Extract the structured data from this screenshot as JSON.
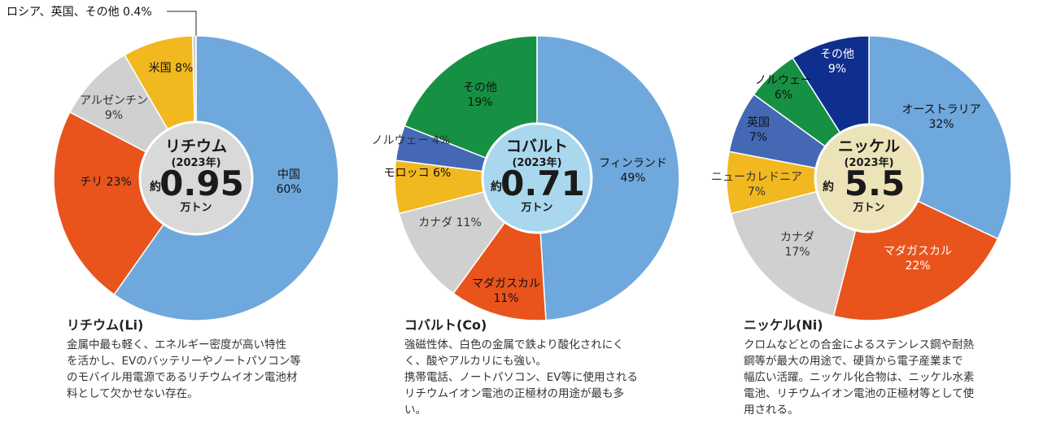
{
  "colors": {
    "blue": "#6fa8dc",
    "orange": "#e8541c",
    "gray": "#d0d0d0",
    "yellow": "#f1b820",
    "green": "#169143",
    "royal": "#4468b4",
    "navy": "#0f2f8e",
    "center_li": "#d9d9d9",
    "center_co": "#a9d8ee",
    "center_ni": "#ece4b8"
  },
  "chart_data": [
    {
      "type": "pie",
      "center": {
        "title": "リチウム",
        "year": "(2023年)",
        "prefix": "約",
        "value": "0.95",
        "unit": "万トン"
      },
      "slices": [
        {
          "name": "中国",
          "value": 60,
          "label": "60%",
          "color": "blue",
          "text_color": "#111"
        },
        {
          "name": "チリ",
          "value": 23,
          "label": "23%",
          "color": "orange",
          "text_color": "#111"
        },
        {
          "name": "アルゼンチン",
          "value": 9,
          "label": "9%",
          "color": "gray",
          "text_color": "#333"
        },
        {
          "name": "米国",
          "value": 8,
          "label": "8%",
          "color": "yellow",
          "text_color": "#111"
        },
        {
          "name": "ロシア、英国、その他",
          "value": 0.4,
          "label": "0.4%",
          "color": "gray",
          "text_color": "#111"
        }
      ]
    },
    {
      "type": "pie",
      "center": {
        "title": "コバルト",
        "year": "(2023年)",
        "prefix": "約",
        "value": "0.71",
        "unit": "万トン"
      },
      "slices": [
        {
          "name": "フィンランド",
          "value": 49,
          "label": "49%",
          "color": "blue",
          "text_color": "#111"
        },
        {
          "name": "マダガスカル",
          "value": 11,
          "label": "11%",
          "color": "orange",
          "text_color": "#111"
        },
        {
          "name": "カナダ",
          "value": 11,
          "label": "11%",
          "color": "gray",
          "text_color": "#333"
        },
        {
          "name": "モロッコ",
          "value": 6,
          "label": "6%",
          "color": "yellow",
          "text_color": "#111"
        },
        {
          "name": "ノルウェー",
          "value": 4,
          "label": "4%",
          "color": "royal",
          "text_color": "#333"
        },
        {
          "name": "その他",
          "value": 19,
          "label": "19%",
          "color": "green",
          "text_color": "#111"
        }
      ]
    },
    {
      "type": "pie",
      "center": {
        "title": "ニッケル",
        "year": "(2023年)",
        "prefix": "約",
        "value": "5.5",
        "unit": "万トン"
      },
      "slices": [
        {
          "name": "オーストラリア",
          "value": 32,
          "label": "32%",
          "color": "blue",
          "text_color": "#111"
        },
        {
          "name": "マダガスカル",
          "value": 22,
          "label": "22%",
          "color": "orange",
          "text_color": "#fff"
        },
        {
          "name": "カナダ",
          "value": 17,
          "label": "17%",
          "color": "gray",
          "text_color": "#333"
        },
        {
          "name": "ニューカレドニア",
          "value": 7,
          "label": "7%",
          "color": "yellow",
          "text_color": "#333"
        },
        {
          "name": "英国",
          "value": 7,
          "label": "7%",
          "color": "royal",
          "text_color": "#111"
        },
        {
          "name": "ノルウェー",
          "value": 6,
          "label": "6%",
          "color": "green",
          "text_color": "#111"
        },
        {
          "name": "その他",
          "value": 9,
          "label": "9%",
          "color": "navy",
          "text_color": "#fff"
        }
      ]
    }
  ],
  "panels": [
    {
      "title": "リチウム(Li)",
      "description": "金属中最も軽く、エネルギー密度が高い特性\nを活かし、EVのバッテリーやノートパソコン等\nのモバイル用電源であるリチウムイオン電池材\n料として欠かせない存在。"
    },
    {
      "title": "コバルト(Co)",
      "description": "強磁性体、白色の金属で鉄より酸化されにく\nく、酸やアルカリにも強い。\n携帯電話、ノートパソコン、EV等に使用される\nリチウムイオン電池の正極材の用途が最も多\nい。"
    },
    {
      "title": "ニッケル(Ni)",
      "description": "クロムなどとの合金によるステンレス鋼や耐熱\n鋼等が最大の用途で、硬貨から電子産業まで\n幅広い活躍。ニッケル化合物は、ニッケル水素\n電池、リチウムイオン電池の正極材等として使\n用される。"
    }
  ]
}
